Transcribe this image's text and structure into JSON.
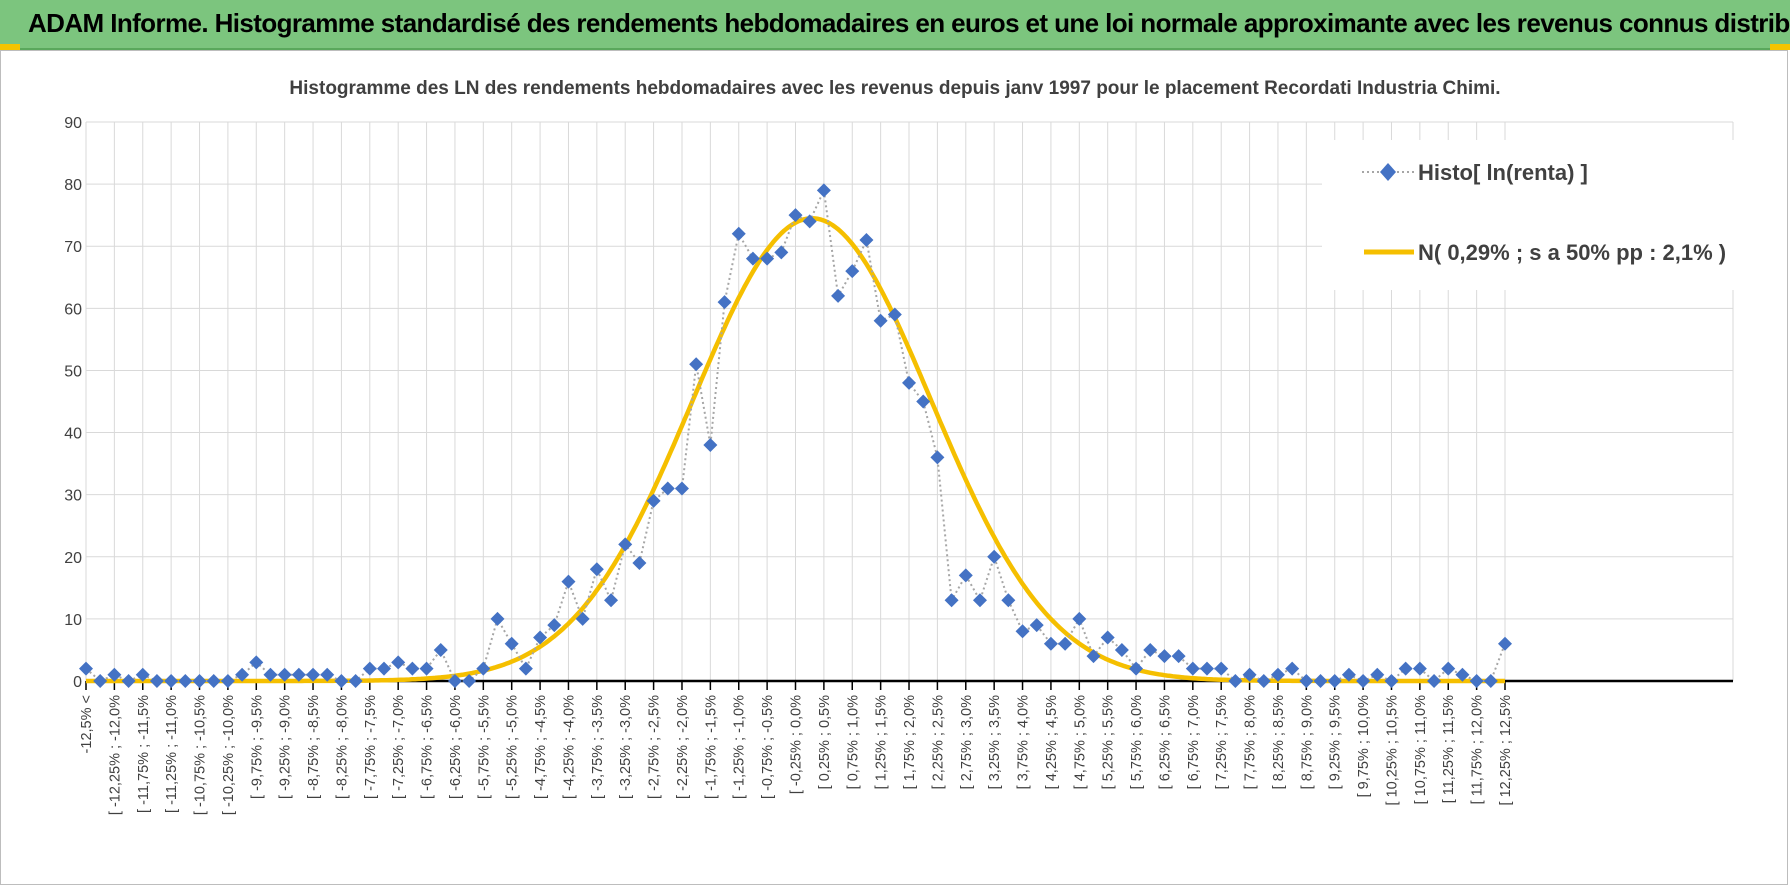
{
  "header": {
    "title": "ADAM Informe. Histogramme standardisé des rendements hebdomadaires en euros et une loi normale approximante avec les revenus connus distribués"
  },
  "chart_data": {
    "type": "line",
    "title": "Histogramme des LN des rendements hebdomadaires avec les revenus depuis janv 1997 pour le placement Recordati Industria  Chimi.",
    "xlabel": "",
    "ylabel": "",
    "ylim": [
      0,
      90
    ],
    "yticks": [
      0,
      10,
      20,
      30,
      40,
      50,
      60,
      70,
      80,
      90
    ],
    "grid": true,
    "legend_position": "top-right",
    "categories": [
      "-12,5% <",
      "[ -12,25% ; -12,0%",
      "[ -11,75% ; -11,5%",
      "[ -11,25% ; -11,0%",
      "[ -10,75% ; -10,5%",
      "[ -10,25% ; -10,0%",
      "[ -9,75% ; -9,5%",
      "[ -9,25% ; -9,0%",
      "[ -8,75% ; -8,5%",
      "[ -8,25% ; -8,0%",
      "[ -7,75% ; -7,5%",
      "[ -7,25% ; -7,0%",
      "[ -6,75% ; -6,5%",
      "[ -6,25% ; -6,0%",
      "[ -5,75% ; -5,5%",
      "[ -5,25% ; -5,0%",
      "[ -4,75% ; -4,5%",
      "[ -4,25% ; -4,0%",
      "[ -3,75% ; -3,5%",
      "[ -3,25% ; -3,0%",
      "[ -2,75% ; -2,5%",
      "[ -2,25% ; -2,0%",
      "[ -1,75% ; -1,5%",
      "[ -1,25% ; -1,0%",
      "[ -0,75% ; -0,5%",
      "[ -0,25% ; 0,0%",
      "[ 0,25% ; 0,5%",
      "[ 0,75% ; 1,0%",
      "[ 1,25% ; 1,5%",
      "[ 1,75% ; 2,0%",
      "[ 2,25% ; 2,5%",
      "[ 2,75% ; 3,0%",
      "[ 3,25% ; 3,5%",
      "[ 3,75% ; 4,0%",
      "[ 4,25% ; 4,5%",
      "[ 4,75% ; 5,0%",
      "[ 5,25% ; 5,5%",
      "[ 5,75% ; 6,0%",
      "[ 6,25% ; 6,5%",
      "[ 6,75% ; 7,0%",
      "[ 7,25% ; 7,5%",
      "[ 7,75% ; 8,0%",
      "[ 8,25% ; 8,5%",
      "[ 8,75% ; 9,0%",
      "[ 9,25% ; 9,5%",
      "[ 9,75% ; 10,0%",
      "[ 10,25% ; 10,5%",
      "[ 10,75% ; 11,0%",
      "[ 11,25% ; 11,5%",
      "[ 11,75% ; 12,0%",
      "[ 12,25% ; 12,5%"
    ],
    "x": [
      -12.5,
      -12.25,
      -12,
      -11.75,
      -11.5,
      -11.25,
      -11,
      -10.75,
      -10.5,
      -10.25,
      -10,
      -9.75,
      -9.5,
      -9.25,
      -9,
      -8.75,
      -8.5,
      -8.25,
      -8,
      -7.75,
      -7.5,
      -7.25,
      -7,
      -6.75,
      -6.5,
      -6.25,
      -6,
      -5.75,
      -5.5,
      -5.25,
      -5,
      -4.75,
      -4.5,
      -4.25,
      -4,
      -3.75,
      -3.5,
      -3.25,
      -3,
      -2.75,
      -2.5,
      -2.25,
      -2,
      -1.75,
      -1.5,
      -1.25,
      -1,
      -0.75,
      -0.5,
      -0.25,
      0,
      0.25,
      0.5,
      0.75,
      1,
      1.25,
      1.5,
      1.75,
      2,
      2.25,
      2.5,
      2.75,
      3,
      3.25,
      3.5,
      3.75,
      4,
      4.25,
      4.5,
      4.75,
      5,
      5.25,
      5.5,
      5.75,
      6,
      6.25,
      6.5,
      6.75,
      7,
      7.25,
      7.5,
      7.75,
      8,
      8.25,
      8.5,
      8.75,
      9,
      9.25,
      9.5,
      9.75,
      10,
      10.25,
      10.5,
      10.75,
      11,
      11.25,
      11.5,
      11.75,
      12,
      12.25,
      12.5
    ],
    "series": [
      {
        "name": "Histo[ ln(renta) ]",
        "style": "diamond-markers-dotted-line",
        "color": "#4472c4",
        "values": [
          2,
          0,
          1,
          0,
          1,
          0,
          0,
          0,
          0,
          0,
          0,
          1,
          3,
          1,
          1,
          1,
          1,
          1,
          0,
          0,
          2,
          2,
          3,
          2,
          2,
          5,
          0,
          0,
          2,
          10,
          6,
          2,
          7,
          9,
          16,
          10,
          18,
          13,
          22,
          19,
          29,
          31,
          31,
          51,
          38,
          61,
          72,
          68,
          68,
          69,
          75,
          74,
          79,
          62,
          66,
          71,
          58,
          59,
          48,
          45,
          36,
          13,
          17,
          13,
          20,
          13,
          8,
          9,
          6,
          6,
          10,
          4,
          7,
          5,
          2,
          5,
          4,
          4,
          2,
          2,
          2,
          0,
          1,
          0,
          1,
          2,
          0,
          0,
          0,
          1,
          0,
          1,
          0,
          2,
          2,
          0,
          2,
          1,
          0,
          0,
          6
        ]
      },
      {
        "name": "N( 0,29% ; s a 50% pp : 2,1% )",
        "style": "smooth-line",
        "color": "#f5bf00",
        "mean": 0.29,
        "sd": 2.1,
        "peak": 74.5
      }
    ]
  }
}
